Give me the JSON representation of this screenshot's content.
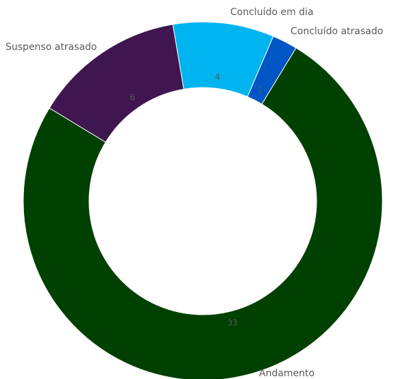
{
  "chart_data": {
    "type": "pie",
    "variant": "donut",
    "legend": "none",
    "slices": [
      {
        "label": "Concluído atrasado",
        "value": 1,
        "color": "#0056c4"
      },
      {
        "label": "Andamento",
        "value": 33,
        "color": "#004000"
      },
      {
        "label": "Suspenso atrasado",
        "value": 6,
        "color": "#3f1650"
      },
      {
        "label": "Concluído em dia",
        "value": 4,
        "color": "#00b4f0"
      }
    ]
  }
}
